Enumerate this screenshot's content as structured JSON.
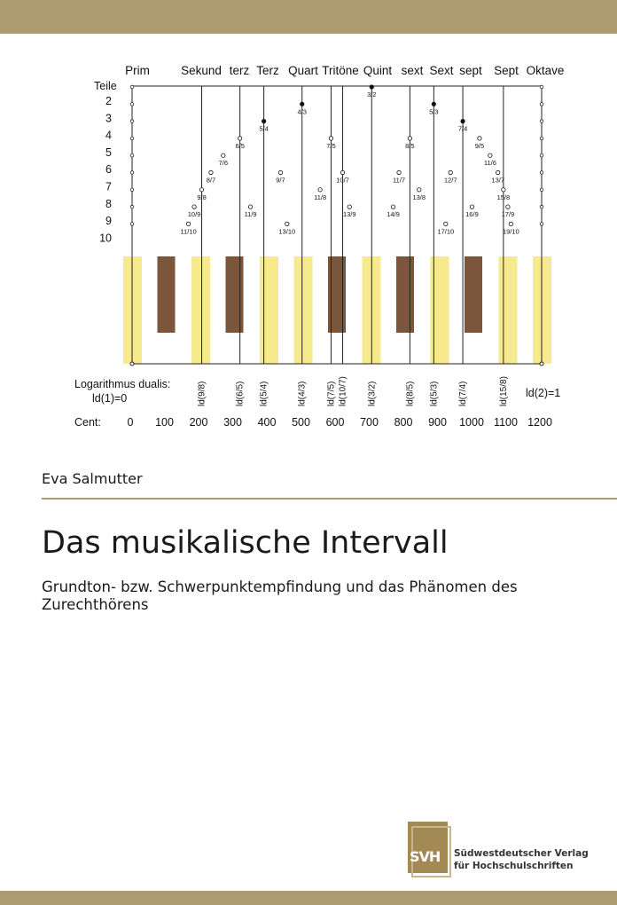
{
  "cover": {
    "author": "Eva Salmutter",
    "title": "Das musikalische Intervall",
    "subtitle": "Grundton- bzw. Schwerpunktempfindung und das Phänomen des Zurechthörens",
    "publisher_mark": "SVH",
    "publisher_line1": "Südwestdeutscher Verlag",
    "publisher_line2": "für Hochschulschriften"
  },
  "colors": {
    "band": "#ad9c72",
    "white_key": "#f6e98e",
    "black_key": "#7b563a"
  },
  "figure": {
    "teile_label": "Teile",
    "log_label_line1": "Logarithmus dualis:",
    "log_label_line2": "ld(1)=0",
    "ld_end_label": "ld(2)=1",
    "cent_label": "Cent:",
    "interval_names": [
      "Prim",
      "Sekund",
      "terz",
      "Terz",
      "Quart",
      "Tritöne",
      "Quint",
      "sext",
      "Sext",
      "sept",
      "Sept",
      "Oktave"
    ],
    "teile": [
      "2",
      "3",
      "4",
      "5",
      "6",
      "7",
      "8",
      "9",
      "10"
    ],
    "cents": [
      "0",
      "100",
      "200",
      "300",
      "400",
      "500",
      "600",
      "700",
      "800",
      "900",
      "1000",
      "1100",
      "1200"
    ],
    "ld_labels": [
      {
        "label": "ld(9/8)",
        "cent": 204
      },
      {
        "label": "ld(6/5)",
        "cent": 316
      },
      {
        "label": "ld(5/4)",
        "cent": 386
      },
      {
        "label": "ld(4/3)",
        "cent": 498
      },
      {
        "label": "ld(7/5)",
        "cent": 583
      },
      {
        "label": "ld(10/7)",
        "cent": 617
      },
      {
        "label": "ld(3/2)",
        "cent": 702
      },
      {
        "label": "ld(8/5)",
        "cent": 814
      },
      {
        "label": "ld(5/3)",
        "cent": 884
      },
      {
        "label": "ld(7/4)",
        "cent": 969
      },
      {
        "label": "ld(15/8)",
        "cent": 1088
      }
    ],
    "ratios": [
      {
        "label": "11/10",
        "cent": 165,
        "row": 10
      },
      {
        "label": "10/9",
        "cent": 182,
        "row": 9
      },
      {
        "label": "9/8",
        "cent": 204,
        "row": 8
      },
      {
        "label": "8/7",
        "cent": 231,
        "row": 7
      },
      {
        "label": "7/6",
        "cent": 267,
        "row": 6
      },
      {
        "label": "6/5",
        "cent": 316,
        "row": 5
      },
      {
        "label": "11/9",
        "cent": 347,
        "row": 9
      },
      {
        "label": "5/4",
        "cent": 386,
        "row": 4
      },
      {
        "label": "9/7",
        "cent": 435,
        "row": 7
      },
      {
        "label": "13/10",
        "cent": 454,
        "row": 10
      },
      {
        "label": "4/3",
        "cent": 498,
        "row": 3
      },
      {
        "label": "11/8",
        "cent": 551,
        "row": 8
      },
      {
        "label": "7/5",
        "cent": 583,
        "row": 5
      },
      {
        "label": "10/7",
        "cent": 617,
        "row": 7
      },
      {
        "label": "13/9",
        "cent": 637,
        "row": 9
      },
      {
        "label": "3/2",
        "cent": 702,
        "row": 2
      },
      {
        "label": "14/9",
        "cent": 765,
        "row": 9
      },
      {
        "label": "11/7",
        "cent": 782,
        "row": 7
      },
      {
        "label": "8/5",
        "cent": 814,
        "row": 5
      },
      {
        "label": "13/8",
        "cent": 841,
        "row": 8
      },
      {
        "label": "17/10",
        "cent": 919,
        "row": 10
      },
      {
        "label": "5/3",
        "cent": 884,
        "row": 3
      },
      {
        "label": "12/7",
        "cent": 933,
        "row": 7
      },
      {
        "label": "16/9",
        "cent": 996,
        "row": 9
      },
      {
        "label": "7/4",
        "cent": 969,
        "row": 4
      },
      {
        "label": "9/5",
        "cent": 1018,
        "row": 5
      },
      {
        "label": "11/6",
        "cent": 1049,
        "row": 6
      },
      {
        "label": "13/7",
        "cent": 1072,
        "row": 7
      },
      {
        "label": "15/8",
        "cent": 1088,
        "row": 8
      },
      {
        "label": "17/9",
        "cent": 1101,
        "row": 9
      },
      {
        "label": "19/10",
        "cent": 1110,
        "row": 10
      }
    ],
    "white_key_cents": [
      0,
      200,
      400,
      500,
      700,
      900,
      1100,
      1200
    ],
    "black_key_cents": [
      100,
      300,
      600,
      800,
      1000
    ]
  }
}
